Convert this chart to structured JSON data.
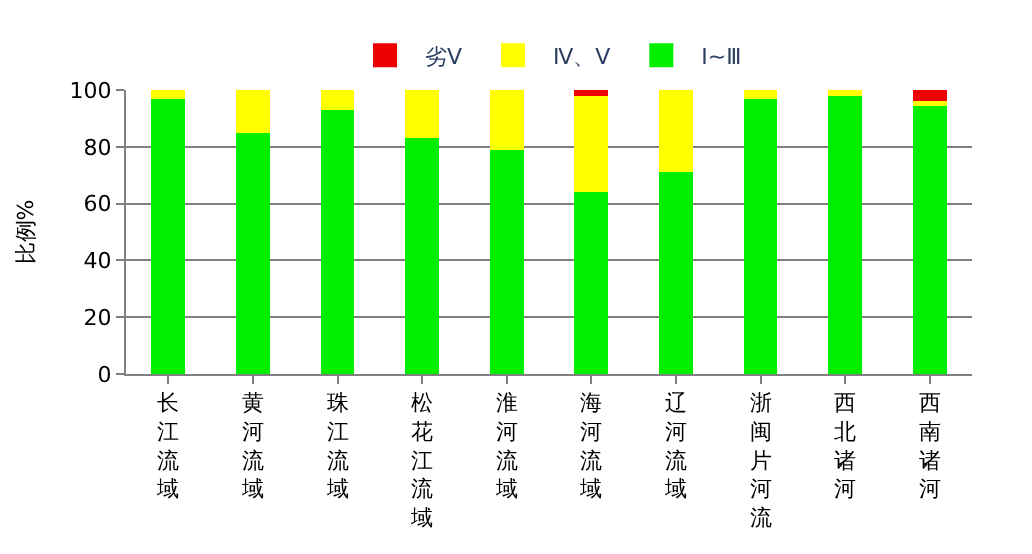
{
  "chart_data": {
    "type": "bar",
    "stacked": true,
    "ylabel": "比例%",
    "categories": [
      "长江流域",
      "黄河流域",
      "珠江流域",
      "松花江流域",
      "淮河流域",
      "海河流域",
      "辽河流域",
      "浙闽片河流",
      "西北诸河",
      "西南诸河"
    ],
    "series": [
      {
        "name": "Ⅰ~Ⅲ",
        "color": "#00ee00",
        "values": [
          97,
          85,
          93,
          83,
          79,
          64,
          71,
          97,
          98,
          95
        ]
      },
      {
        "name": "Ⅳ、Ⅴ",
        "color": "#ffff00",
        "values": [
          3,
          15,
          7,
          17,
          21,
          34,
          29,
          3,
          2,
          1
        ]
      },
      {
        "name": "劣Ⅴ",
        "color": "#ee0000",
        "values": [
          0,
          0,
          0,
          0,
          0,
          2,
          0,
          0,
          0,
          4
        ]
      }
    ],
    "ylim": [
      0,
      100
    ],
    "yticks": [
      0,
      20,
      40,
      60,
      80,
      100
    ],
    "grid": "y",
    "legend": "top"
  }
}
